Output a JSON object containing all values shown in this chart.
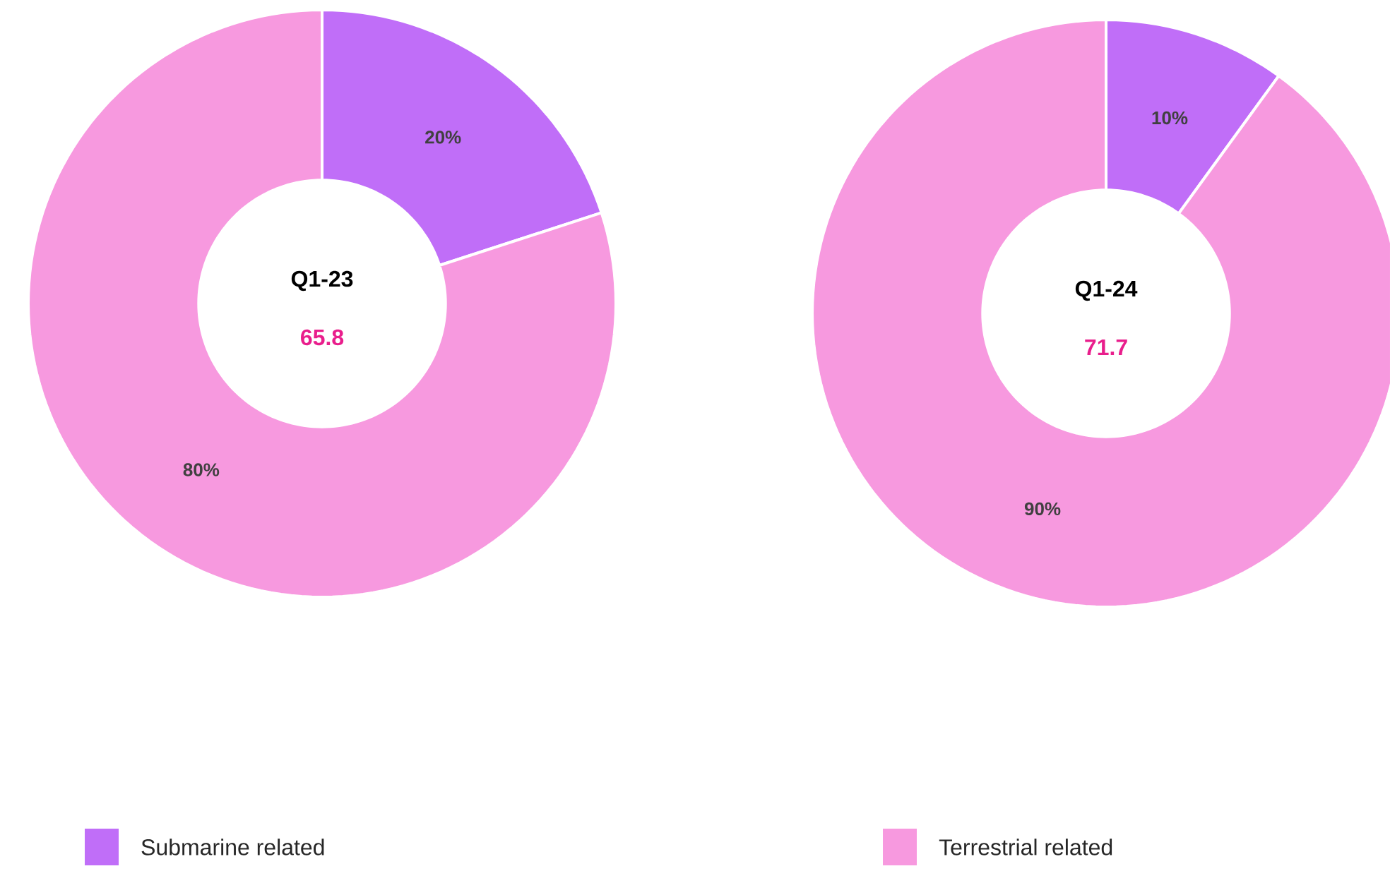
{
  "chart_data": [
    {
      "type": "donut",
      "title": "Q1-23",
      "subtitle": "65.8",
      "categories": [
        "Submarine related",
        "Terrestrial related"
      ],
      "values": [
        20,
        80
      ],
      "colors": [
        "#c06ef8",
        "#f799df"
      ],
      "value_labels": [
        "20%",
        "80%"
      ],
      "legend": "bottom"
    },
    {
      "type": "donut",
      "title": "Q1-24",
      "subtitle": "71.7",
      "categories": [
        null,
        null
      ],
      "values": [
        10,
        90
      ],
      "colors": [
        "#c06ef8",
        "#f799df"
      ],
      "value_labels": [
        "10%",
        "90%"
      ]
    }
  ]
}
